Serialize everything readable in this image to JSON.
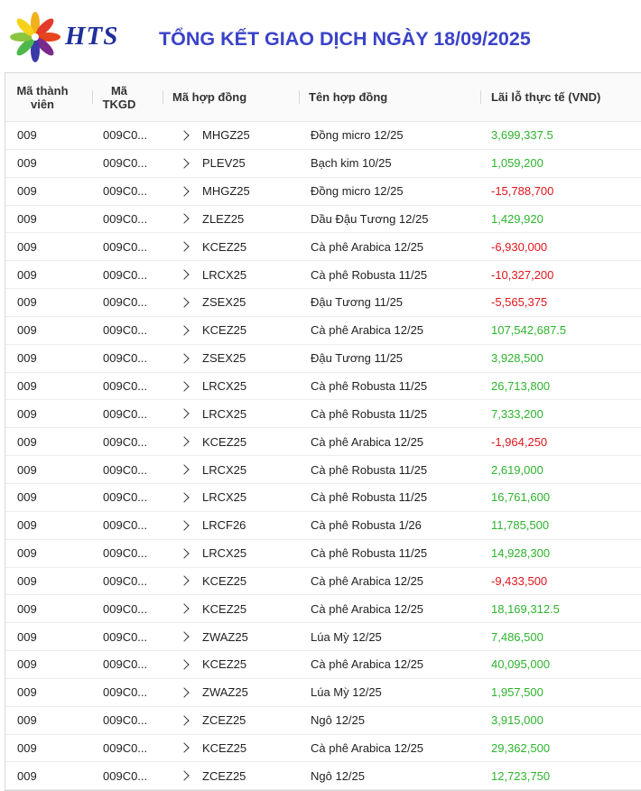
{
  "header": {
    "logo_text": "HTS",
    "title": "TỔNG KẾT GIAO DỊCH NGÀY 18/09/2025"
  },
  "colors": {
    "positive": "#2db52d",
    "negative": "#e0151b",
    "title": "#3a43c9",
    "logo": "#1f2f9a"
  },
  "table": {
    "columns": {
      "member_line1": "Mã thành",
      "member_line2": "viên",
      "account_line1": "Mã",
      "account_line2": "TKGD",
      "contract_code": "Mã hợp đồng",
      "contract_name": "Tên hợp đồng",
      "pnl": "Lãi lỗ thực tế (VND)"
    },
    "rows": [
      {
        "member": "009",
        "account": "009C0...",
        "code": "MHGZ25",
        "name": "Đồng micro 12/25",
        "pnl": "3,699,337.5",
        "sign": "pos"
      },
      {
        "member": "009",
        "account": "009C0...",
        "code": "PLEV25",
        "name": "Bạch kim 10/25",
        "pnl": "1,059,200",
        "sign": "pos"
      },
      {
        "member": "009",
        "account": "009C0...",
        "code": "MHGZ25",
        "name": "Đồng micro 12/25",
        "pnl": "-15,788,700",
        "sign": "neg"
      },
      {
        "member": "009",
        "account": "009C0...",
        "code": "ZLEZ25",
        "name": "Dầu Đậu Tương 12/25",
        "pnl": "1,429,920",
        "sign": "pos"
      },
      {
        "member": "009",
        "account": "009C0...",
        "code": "KCEZ25",
        "name": "Cà phê Arabica 12/25",
        "pnl": "-6,930,000",
        "sign": "neg"
      },
      {
        "member": "009",
        "account": "009C0...",
        "code": "LRCX25",
        "name": "Cà phê Robusta 11/25",
        "pnl": "-10,327,200",
        "sign": "neg"
      },
      {
        "member": "009",
        "account": "009C0...",
        "code": "ZSEX25",
        "name": "Đậu Tương 11/25",
        "pnl": "-5,565,375",
        "sign": "neg"
      },
      {
        "member": "009",
        "account": "009C0...",
        "code": "KCEZ25",
        "name": "Cà phê Arabica 12/25",
        "pnl": "107,542,687.5",
        "sign": "pos"
      },
      {
        "member": "009",
        "account": "009C0...",
        "code": "ZSEX25",
        "name": "Đậu Tương 11/25",
        "pnl": "3,928,500",
        "sign": "pos"
      },
      {
        "member": "009",
        "account": "009C0...",
        "code": "LRCX25",
        "name": "Cà phê Robusta 11/25",
        "pnl": "26,713,800",
        "sign": "pos"
      },
      {
        "member": "009",
        "account": "009C0...",
        "code": "LRCX25",
        "name": "Cà phê Robusta 11/25",
        "pnl": "7,333,200",
        "sign": "pos"
      },
      {
        "member": "009",
        "account": "009C0...",
        "code": "KCEZ25",
        "name": "Cà phê Arabica 12/25",
        "pnl": "-1,964,250",
        "sign": "neg"
      },
      {
        "member": "009",
        "account": "009C0...",
        "code": "LRCX25",
        "name": "Cà phê Robusta 11/25",
        "pnl": "2,619,000",
        "sign": "pos"
      },
      {
        "member": "009",
        "account": "009C0...",
        "code": "LRCX25",
        "name": "Cà phê Robusta 11/25",
        "pnl": "16,761,600",
        "sign": "pos"
      },
      {
        "member": "009",
        "account": "009C0...",
        "code": "LRCF26",
        "name": "Cà phê Robusta 1/26",
        "pnl": "11,785,500",
        "sign": "pos"
      },
      {
        "member": "009",
        "account": "009C0...",
        "code": "LRCX25",
        "name": "Cà phê Robusta 11/25",
        "pnl": "14,928,300",
        "sign": "pos"
      },
      {
        "member": "009",
        "account": "009C0...",
        "code": "KCEZ25",
        "name": "Cà phê Arabica 12/25",
        "pnl": "-9,433,500",
        "sign": "neg"
      },
      {
        "member": "009",
        "account": "009C0...",
        "code": "KCEZ25",
        "name": "Cà phê Arabica 12/25",
        "pnl": "18,169,312.5",
        "sign": "pos"
      },
      {
        "member": "009",
        "account": "009C0...",
        "code": "ZWAZ25",
        "name": "Lúa Mỳ 12/25",
        "pnl": "7,486,500",
        "sign": "pos"
      },
      {
        "member": "009",
        "account": "009C0...",
        "code": "KCEZ25",
        "name": "Cà phê Arabica 12/25",
        "pnl": "40,095,000",
        "sign": "pos"
      },
      {
        "member": "009",
        "account": "009C0...",
        "code": "ZWAZ25",
        "name": "Lúa Mỳ 12/25",
        "pnl": "1,957,500",
        "sign": "pos"
      },
      {
        "member": "009",
        "account": "009C0...",
        "code": "ZCEZ25",
        "name": "Ngô 12/25",
        "pnl": "3,915,000",
        "sign": "pos"
      },
      {
        "member": "009",
        "account": "009C0...",
        "code": "KCEZ25",
        "name": "Cà phê Arabica 12/25",
        "pnl": "29,362,500",
        "sign": "pos"
      },
      {
        "member": "009",
        "account": "009C0...",
        "code": "ZCEZ25",
        "name": "Ngô 12/25",
        "pnl": "12,723,750",
        "sign": "pos"
      }
    ]
  }
}
